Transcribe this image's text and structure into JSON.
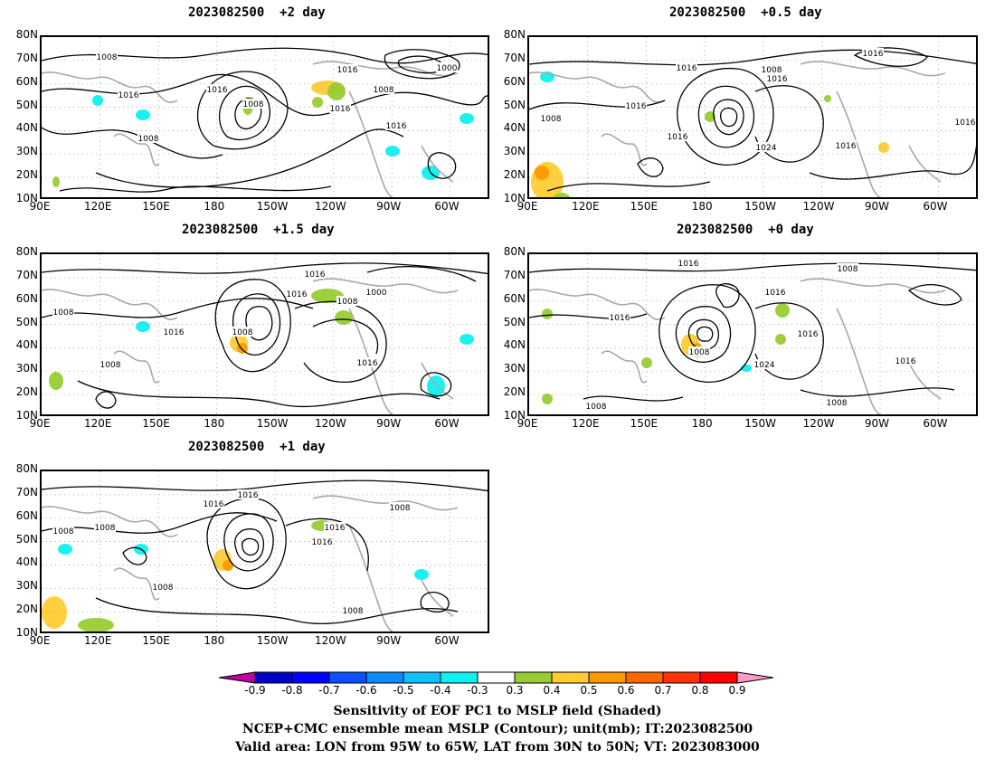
{
  "panels": [
    {
      "title": "2023082500  +2 day"
    },
    {
      "title": "2023082500  +0.5 day"
    },
    {
      "title": "2023082500  +1.5 day"
    },
    {
      "title": "2023082500  +0 day"
    },
    {
      "title": "2023082500  +1 day"
    }
  ],
  "lat_labels": [
    "80N",
    "70N",
    "60N",
    "50N",
    "40N",
    "30N",
    "20N",
    "10N"
  ],
  "lon_labels": [
    "90E",
    "120E",
    "150E",
    "180",
    "150W",
    "120W",
    "90W",
    "60W"
  ],
  "contour_labels": {
    "p0": [
      "1008",
      "1016",
      "1016",
      "1008",
      "1016",
      "1000",
      "1008",
      "1016",
      "1016",
      "1008"
    ],
    "p1": [
      "1008",
      "1016",
      "1008",
      "1016",
      "1016",
      "1016",
      "1016",
      "1024",
      "1016",
      "1016"
    ],
    "p2": [
      "1016",
      "1008",
      "1016",
      "1008",
      "1008",
      "1016",
      "1000",
      "1016",
      "1008"
    ],
    "p3": [
      "1016",
      "1008",
      "1016",
      "1016",
      "1008",
      "1024",
      "1016",
      "1016",
      "1008",
      "1008"
    ],
    "p4": [
      "1016",
      "1008",
      "1016",
      "1008",
      "1016",
      "1016",
      "1008",
      "1008",
      "1008"
    ]
  },
  "colorbar": {
    "ticks": [
      "-0.9",
      "-0.8",
      "-0.7",
      "-0.6",
      "-0.5",
      "-0.4",
      "-0.3",
      "0.3",
      "0.4",
      "0.5",
      "0.6",
      "0.7",
      "0.8",
      "0.9"
    ],
    "colors": [
      "#c000a0",
      "#0000c8",
      "#0000ff",
      "#0a50ff",
      "#0a8cff",
      "#10c0ff",
      "#10f0f0",
      "#ffffff",
      "#99cc33",
      "#ffcc33",
      "#ff9900",
      "#ff6600",
      "#ff3300",
      "#ff0000",
      "#ff99cc"
    ]
  },
  "caption": {
    "line1": "Sensitivity of EOF PC1 to MSLP field (Shaded)",
    "line2": "NCEP+CMC ensemble mean MSLP (Contour); unit(mb); IT:2023082500",
    "line3": "Valid area: LON from 95W to 65W, LAT from 30N to 50N; VT: 2023083000"
  }
}
